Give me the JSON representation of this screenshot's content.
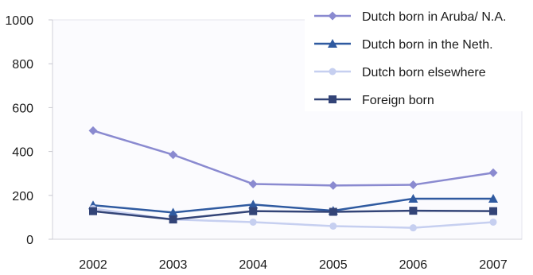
{
  "chart_data": {
    "type": "line",
    "categories": [
      "2002",
      "2003",
      "2004",
      "2005",
      "2006",
      "2007"
    ],
    "ylim": [
      0,
      1000
    ],
    "yticks": [
      0,
      200,
      400,
      600,
      800,
      1000
    ],
    "grid": false,
    "legend_position": "top-right",
    "series": [
      {
        "name": "Dutch born in Aruba/ N.A.",
        "values": [
          495,
          385,
          252,
          245,
          248,
          303
        ],
        "color": "#8a8ad0",
        "marker": "diamond"
      },
      {
        "name": "Dutch born in the Neth.",
        "values": [
          155,
          122,
          158,
          130,
          185,
          185
        ],
        "color": "#2f5aa0",
        "marker": "triangle"
      },
      {
        "name": "Dutch born elsewhere",
        "values": [
          140,
          90,
          78,
          60,
          52,
          78
        ],
        "color": "#c6cff0",
        "marker": "circle"
      },
      {
        "name": "Foreign born",
        "values": [
          128,
          90,
          128,
          125,
          130,
          128
        ],
        "color": "#334477",
        "marker": "square"
      }
    ]
  }
}
